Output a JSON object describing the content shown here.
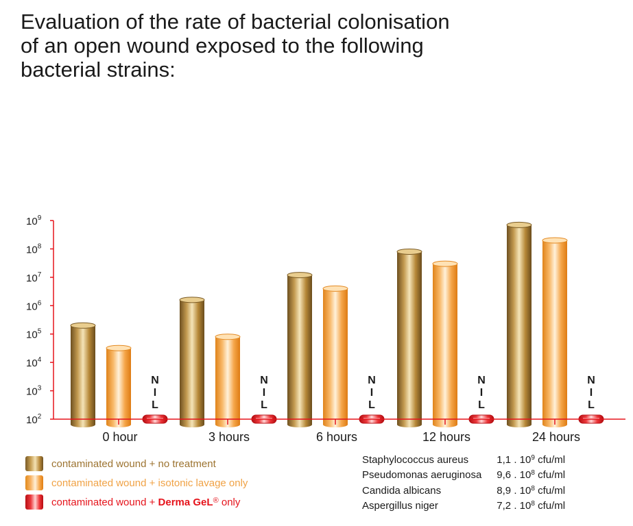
{
  "title_lines": [
    "Evaluation of the rate of bacterial colonisation",
    "of an open wound exposed to the following",
    "bacterial strains:"
  ],
  "chart_data": {
    "type": "bar",
    "y_scale": "log",
    "ylim": [
      100,
      1000000000
    ],
    "y_ticks": [
      {
        "base": "10",
        "exp": "2"
      },
      {
        "base": "10",
        "exp": "3"
      },
      {
        "base": "10",
        "exp": "4"
      },
      {
        "base": "10",
        "exp": "5"
      },
      {
        "base": "10",
        "exp": "6"
      },
      {
        "base": "10",
        "exp": "7"
      },
      {
        "base": "10",
        "exp": "8"
      },
      {
        "base": "10",
        "exp": "9"
      }
    ],
    "categories": [
      "0 hour",
      "3 hours",
      "6 hours",
      "12 hours",
      "24 hours"
    ],
    "series": [
      {
        "name": "contaminated wound + no treatment",
        "color": "#b08a45",
        "values": [
          200000,
          1600000,
          12000000,
          80000000,
          700000000
        ]
      },
      {
        "name": "contaminated wound + isotonic lavage only",
        "color": "#f7b35c",
        "values": [
          32000,
          80000,
          4000000,
          30000000,
          200000000
        ]
      },
      {
        "name": "contaminated wound + Derma GeL® only",
        "color": "#e5131b",
        "values": [
          100,
          100,
          100,
          100,
          100
        ],
        "data_label": [
          "N",
          "I",
          "L"
        ]
      }
    ],
    "grid": false,
    "axis_color": "#e5131b"
  },
  "legend": [
    {
      "prefix": "contaminated wound + no treatment",
      "brand": "",
      "reg": "",
      "suffix": ""
    },
    {
      "prefix": "contaminated wound + isotonic lavage only",
      "brand": "",
      "reg": "",
      "suffix": ""
    },
    {
      "prefix": "contaminated wound + ",
      "brand": "Derma GeL",
      "reg": "®",
      "suffix": " only"
    }
  ],
  "strains": [
    {
      "name": "Staphylococcus aureus",
      "coef": "1,1 . 10",
      "exp": "9",
      "unit": " cfu/ml"
    },
    {
      "name": "Pseudomonas aeruginosa",
      "coef": "9,6 . 10",
      "exp": "8",
      "unit": " cfu/ml"
    },
    {
      "name": "Candida albicans",
      "coef": "8,9 . 10",
      "exp": "8",
      "unit": " cfu/ml"
    },
    {
      "name": "Aspergillus niger",
      "coef": "7,2 . 10",
      "exp": "8",
      "unit": " cfu/ml"
    }
  ]
}
